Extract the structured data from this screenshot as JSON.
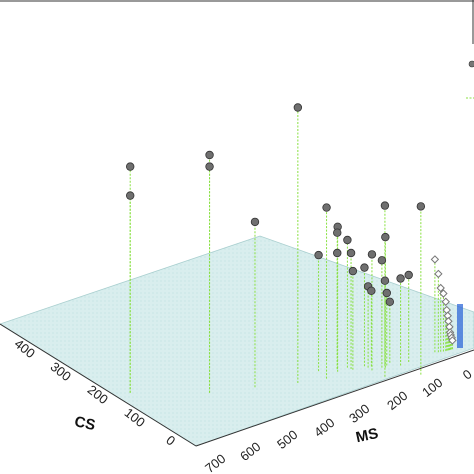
{
  "chart_data": {
    "type": "scatter",
    "projection": "3d",
    "title": "",
    "x_axis_label": "MS",
    "y_axis_label": "CS",
    "x_ticks": [
      "700",
      "600",
      "500",
      "400",
      "300",
      "200",
      "100",
      "0"
    ],
    "y_ticks": [
      "400",
      "300",
      "200",
      "100",
      "0"
    ],
    "floor_color": "#cfe8e8",
    "stem_color": "#88e040",
    "series": [
      {
        "marker": "filled-circle",
        "color": "#6f6f6f",
        "points": [
          {
            "ms": 640,
            "cs": 320,
            "h": 0.78
          },
          {
            "ms": 640,
            "cs": 320,
            "h": 0.68
          },
          {
            "ms": 525,
            "cs": 205,
            "h": 0.82
          },
          {
            "ms": 525,
            "cs": 205,
            "h": 0.78
          },
          {
            "ms": 360,
            "cs": 110,
            "h": 0.95
          },
          {
            "ms": 438,
            "cs": 158,
            "h": 0.57
          },
          {
            "ms": 302,
            "cs": 83,
            "h": 0.59
          },
          {
            "ms": 210,
            "cs": 5,
            "h": 0.59
          },
          {
            "ms": 150,
            "cs": -40,
            "h": 0.58
          },
          {
            "ms": 260,
            "cs": 90,
            "h": 0.5
          },
          {
            "ms": 250,
            "cs": 100,
            "h": 0.47
          },
          {
            "ms": 230,
            "cs": 90,
            "h": 0.44
          },
          {
            "ms": 285,
            "cs": 120,
            "h": 0.4
          },
          {
            "ms": 250,
            "cs": 100,
            "h": 0.4
          },
          {
            "ms": 230,
            "cs": 80,
            "h": 0.4
          },
          {
            "ms": 230,
            "cs": 75,
            "h": 0.34
          },
          {
            "ms": 205,
            "cs": 45,
            "h": 0.4
          },
          {
            "ms": 175,
            "cs": 35,
            "h": 0.45
          },
          {
            "ms": 180,
            "cs": 40,
            "h": 0.37
          },
          {
            "ms": 200,
            "cs": 70,
            "h": 0.34
          },
          {
            "ms": 200,
            "cs": 60,
            "h": 0.28
          },
          {
            "ms": 190,
            "cs": 60,
            "h": 0.26
          },
          {
            "ms": 165,
            "cs": 45,
            "h": 0.29
          },
          {
            "ms": 145,
            "cs": 20,
            "h": 0.3
          },
          {
            "ms": 165,
            "cs": 40,
            "h": 0.25
          },
          {
            "ms": 150,
            "cs": 45,
            "h": 0.21
          },
          {
            "ms": 120,
            "cs": 20,
            "h": 0.3
          }
        ]
      },
      {
        "marker": "open-diamond",
        "color": "#777777",
        "points": [
          {
            "ms": 45,
            "cs": 15,
            "h": 0.32
          },
          {
            "ms": 40,
            "cs": 10,
            "h": 0.27
          },
          {
            "ms": 35,
            "cs": 8,
            "h": 0.22
          },
          {
            "ms": 30,
            "cs": 5,
            "h": 0.2
          },
          {
            "ms": 25,
            "cs": 3,
            "h": 0.17
          },
          {
            "ms": 22,
            "cs": 3,
            "h": 0.14
          },
          {
            "ms": 20,
            "cs": 2,
            "h": 0.12
          },
          {
            "ms": 18,
            "cs": 2,
            "h": 0.1
          },
          {
            "ms": 16,
            "cs": 1,
            "h": 0.08
          },
          {
            "ms": 14,
            "cs": 1,
            "h": 0.06
          },
          {
            "ms": 12,
            "cs": 1,
            "h": 0.05
          },
          {
            "ms": 10,
            "cs": 0,
            "h": 0.04
          },
          {
            "ms": 8,
            "cs": 0,
            "h": 0.03
          }
        ]
      }
    ]
  }
}
